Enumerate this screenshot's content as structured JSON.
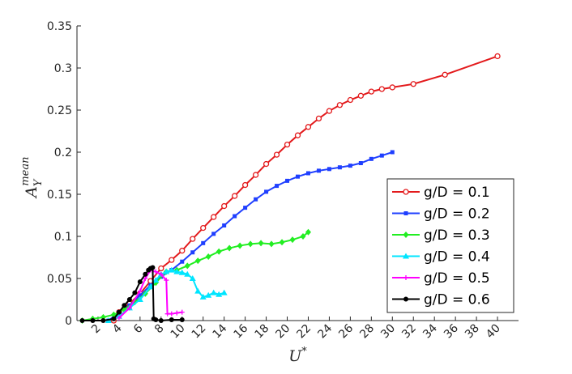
{
  "chart_data": {
    "type": "line",
    "xlabel": {
      "base": "U",
      "sup": "*"
    },
    "ylabel": {
      "base": "A",
      "sub": "Y",
      "sup": "mean"
    },
    "xlim": [
      0,
      42
    ],
    "xticks": [
      2,
      4,
      6,
      8,
      10,
      12,
      14,
      16,
      18,
      20,
      22,
      24,
      26,
      28,
      30,
      32,
      34,
      36,
      38,
      40
    ],
    "ylim": [
      0,
      0.35
    ],
    "yticks": [
      0,
      0.05,
      0.1,
      0.15,
      0.2,
      0.25,
      0.3,
      0.35
    ],
    "legend": "lower right",
    "series": [
      {
        "name": "g/D = 0.1",
        "color": "#e31a1c",
        "marker": "open-circle",
        "x": [
          3.5,
          4,
          5,
          6,
          7,
          8,
          9,
          10,
          11,
          12,
          13,
          14,
          15,
          16,
          17,
          18,
          19,
          20,
          21,
          22,
          23,
          24,
          25,
          26,
          27,
          28,
          29,
          30,
          32,
          35,
          40
        ],
        "values": [
          0.0,
          0.01,
          0.02,
          0.032,
          0.047,
          0.062,
          0.072,
          0.083,
          0.097,
          0.11,
          0.123,
          0.136,
          0.148,
          0.161,
          0.173,
          0.186,
          0.197,
          0.209,
          0.22,
          0.23,
          0.24,
          0.249,
          0.256,
          0.262,
          0.267,
          0.272,
          0.275,
          0.277,
          0.281,
          0.292,
          0.314
        ]
      },
      {
        "name": "g/D = 0.2",
        "color": "#1f3fff",
        "marker": "square",
        "x": [
          3,
          4,
          5,
          6,
          7,
          8,
          9,
          10,
          11,
          12,
          13,
          14,
          15,
          16,
          17,
          18,
          19,
          20,
          21,
          22,
          23,
          24,
          25,
          26,
          27,
          28,
          29,
          30
        ],
        "values": [
          0,
          0.01,
          0.018,
          0.03,
          0.042,
          0.052,
          0.06,
          0.07,
          0.081,
          0.092,
          0.103,
          0.113,
          0.124,
          0.134,
          0.144,
          0.153,
          0.16,
          0.166,
          0.171,
          0.175,
          0.178,
          0.18,
          0.182,
          0.184,
          0.187,
          0.192,
          0.196,
          0.2
        ]
      },
      {
        "name": "g/D = 0.3",
        "color": "#22ee22",
        "marker": "diamond",
        "x": [
          0.5,
          1.5,
          2.5,
          3.5,
          4.5,
          5.5,
          6.5,
          7.5,
          8.5,
          9.5,
          10.5,
          11.5,
          12.5,
          13.5,
          14.5,
          15.5,
          16.5,
          17.5,
          18.5,
          19.5,
          20.5,
          21.5,
          22
        ],
        "values": [
          0,
          0.002,
          0.004,
          0.007,
          0.013,
          0.022,
          0.032,
          0.045,
          0.058,
          0.06,
          0.065,
          0.071,
          0.076,
          0.082,
          0.086,
          0.089,
          0.091,
          0.092,
          0.091,
          0.093,
          0.096,
          0.1,
          0.105
        ]
      },
      {
        "name": "g/D = 0.4",
        "color": "#00e5ff",
        "marker": "triangle",
        "x": [
          3,
          4,
          5,
          6,
          7,
          7.5,
          8,
          8.5,
          9,
          9.5,
          10,
          10.5,
          11,
          11.5,
          12,
          12.5,
          13,
          13.5,
          14
        ],
        "values": [
          0,
          0.005,
          0.015,
          0.025,
          0.04,
          0.048,
          0.055,
          0.058,
          0.06,
          0.058,
          0.057,
          0.055,
          0.05,
          0.035,
          0.028,
          0.03,
          0.033,
          0.031,
          0.033
        ]
      },
      {
        "name": "g/D = 0.5",
        "color": "#ff00ff",
        "marker": "plus",
        "x": [
          4,
          5,
          6,
          6.5,
          7,
          7.5,
          8,
          8.5,
          8.6,
          9,
          9.5,
          10
        ],
        "values": [
          0.003,
          0.015,
          0.035,
          0.05,
          0.06,
          0.058,
          0.055,
          0.048,
          0.008,
          0.008,
          0.009,
          0.01
        ]
      },
      {
        "name": "g/D = 0.6",
        "color": "#000000",
        "marker": "dot",
        "x": [
          0.5,
          1.5,
          2.5,
          3.5,
          4,
          4.5,
          5,
          5.5,
          6,
          6.5,
          6.8,
          7,
          7.2,
          7.3,
          7.5,
          8,
          9,
          10
        ],
        "values": [
          0,
          0,
          0,
          0.002,
          0.01,
          0.018,
          0.025,
          0.033,
          0.046,
          0.055,
          0.06,
          0.062,
          0.063,
          0.002,
          0.001,
          0,
          0.001,
          0.001
        ]
      }
    ]
  }
}
